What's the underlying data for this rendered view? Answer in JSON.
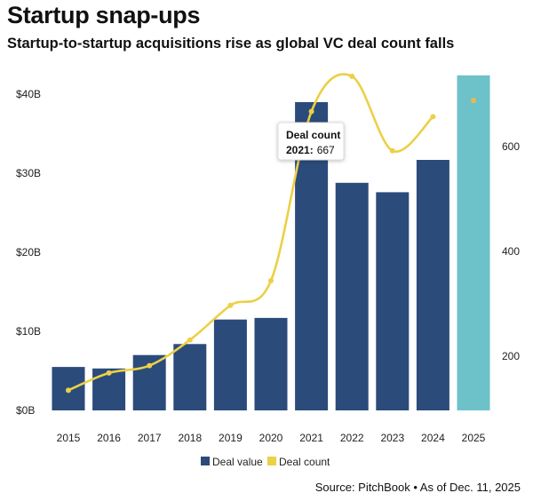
{
  "title": "Startup snap-ups",
  "subtitle": "Startup-to-startup acquisitions rise as global VC deal count falls",
  "source": "Source: PitchBook • As of Dec. 11, 2025",
  "tooltip": {
    "label": "Deal count",
    "year": "2021:",
    "value": "667"
  },
  "colors": {
    "bar": "#2b4b7b",
    "bar_highlight": "#6dc2c9",
    "line": "#ecd046",
    "text": "#222222"
  },
  "chart_data": {
    "type": "bar",
    "categories": [
      "2015",
      "2016",
      "2017",
      "2018",
      "2019",
      "2020",
      "2021",
      "2022",
      "2023",
      "2024",
      "2025"
    ],
    "series": [
      {
        "name": "Deal value",
        "type": "bar",
        "axis": "left",
        "values": [
          5.5,
          5.3,
          7.0,
          8.4,
          11.5,
          11.7,
          39.0,
          28.8,
          27.6,
          31.7,
          42.4
        ]
      },
      {
        "name": "Deal count",
        "type": "line",
        "axis": "right",
        "values": [
          135,
          168,
          182,
          231,
          297,
          344,
          667,
          734,
          592,
          657,
          688
        ]
      }
    ],
    "y_left": {
      "ticks": [
        0,
        10,
        20,
        30,
        40
      ],
      "tick_labels": [
        "$0B",
        "$10B",
        "$20B",
        "$30B",
        "$40B"
      ],
      "range": [
        0,
        40.8
      ]
    },
    "y_right": {
      "ticks": [
        200,
        400,
        600
      ],
      "tick_labels": [
        "200",
        "400",
        "600"
      ]
    },
    "highlight_index": 10,
    "legend_position": "bottom",
    "grid": false
  }
}
